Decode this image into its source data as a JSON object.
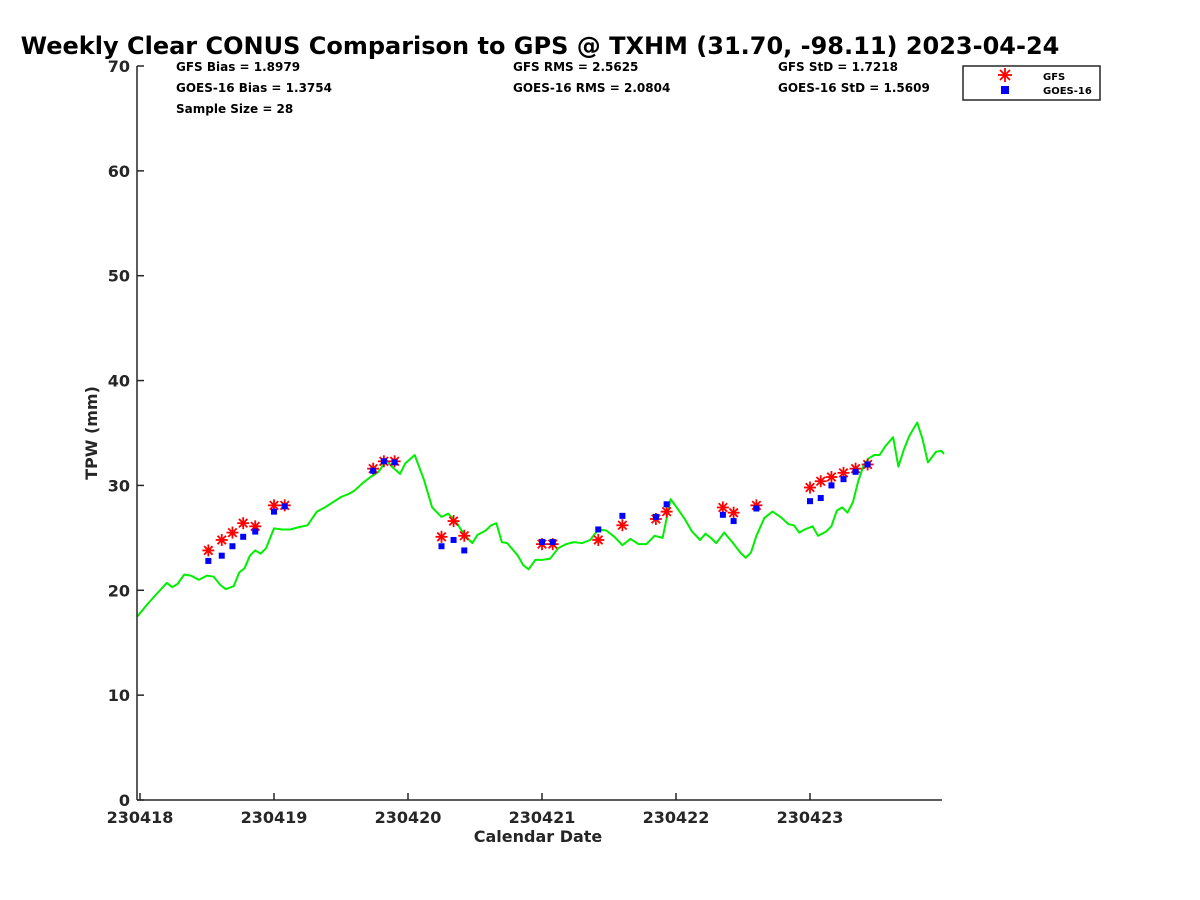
{
  "chart_data": {
    "type": "scatter",
    "title": "Weekly Clear CONUS Comparison to GPS @ TXHM (31.70, -98.11) 2023-04-24",
    "xlabel": "Calendar Date",
    "ylabel": "TPW (mm)",
    "xlim": [
      -0.02,
      6.0
    ],
    "ylim": [
      0,
      70
    ],
    "x_ticks": [
      0,
      1,
      2,
      3,
      4,
      5
    ],
    "x_tick_labels": [
      "230418",
      "230419",
      "230420",
      "230421",
      "230422",
      "230423"
    ],
    "y_ticks": [
      0,
      10,
      20,
      30,
      40,
      50,
      60,
      70
    ],
    "y_tick_labels": [
      "0",
      "10",
      "20",
      "30",
      "40",
      "50",
      "60",
      "70"
    ],
    "grid": false,
    "legend_position": "top-right",
    "stats": [
      {
        "text": "GFS Bias = 1.8979"
      },
      {
        "text": "GOES-16 Bias = 1.3754"
      },
      {
        "text": "Sample Size = 28"
      },
      {
        "text": "GFS RMS = 2.5625"
      },
      {
        "text": "GOES-16 RMS = 2.0804"
      },
      {
        "text": "GFS StD = 1.7218"
      },
      {
        "text": "GOES-16 StD = 1.5609"
      }
    ],
    "series": [
      {
        "name": "GFS",
        "marker": "asterisk",
        "color": "#ff0000",
        "x": [
          0.51,
          0.61,
          0.69,
          0.77,
          0.86,
          1.0,
          1.08,
          1.74,
          1.82,
          1.9,
          2.25,
          2.34,
          2.42,
          3.0,
          3.08,
          3.42,
          3.6,
          3.85,
          3.93,
          4.35,
          4.43,
          4.6,
          5.0,
          5.08,
          5.16,
          5.25,
          5.34,
          5.43
        ],
        "y": [
          23.8,
          24.8,
          25.5,
          26.4,
          26.1,
          28.1,
          28.1,
          31.6,
          32.3,
          32.3,
          25.1,
          26.6,
          25.2,
          24.4,
          24.4,
          24.8,
          26.2,
          26.8,
          27.5,
          27.9,
          27.4,
          28.1,
          29.8,
          30.4,
          30.8,
          31.2,
          31.6,
          32.0
        ]
      },
      {
        "name": "GOES-16",
        "marker": "square",
        "color": "#0000ff",
        "x": [
          0.51,
          0.61,
          0.69,
          0.77,
          0.86,
          1.0,
          1.08,
          1.74,
          1.82,
          1.9,
          2.25,
          2.34,
          2.42,
          3.0,
          3.08,
          3.42,
          3.6,
          3.85,
          3.93,
          4.35,
          4.43,
          4.6,
          5.0,
          5.08,
          5.16,
          5.25,
          5.34,
          5.43
        ],
        "y": [
          22.8,
          23.3,
          24.2,
          25.1,
          25.6,
          27.5,
          28.0,
          31.4,
          32.3,
          32.2,
          24.2,
          24.8,
          23.8,
          24.6,
          24.6,
          25.8,
          27.1,
          27.0,
          28.2,
          27.2,
          26.6,
          27.8,
          28.5,
          28.8,
          30.0,
          30.6,
          31.3,
          32.0
        ]
      },
      {
        "name": "GPS",
        "marker": "line",
        "color": "#00ee00",
        "x": [
          -0.02,
          0.05,
          0.12,
          0.2,
          0.24,
          0.28,
          0.33,
          0.38,
          0.44,
          0.5,
          0.55,
          0.6,
          0.64,
          0.7,
          0.74,
          0.78,
          0.82,
          0.86,
          0.9,
          0.94,
          1.0,
          1.06,
          1.12,
          1.18,
          1.25,
          1.32,
          1.38,
          1.44,
          1.5,
          1.56,
          1.6,
          1.66,
          1.72,
          1.78,
          1.84,
          1.88,
          1.94,
          1.98,
          2.05,
          2.12,
          2.18,
          2.25,
          2.3,
          2.36,
          2.42,
          2.48,
          2.52,
          2.58,
          2.62,
          2.66,
          2.7,
          2.74,
          2.78,
          2.82,
          2.86,
          2.9,
          2.95,
          3.0,
          3.06,
          3.12,
          3.18,
          3.24,
          3.3,
          3.36,
          3.42,
          3.48,
          3.54,
          3.6,
          3.66,
          3.72,
          3.78,
          3.84,
          3.9,
          3.96,
          4.0,
          4.06,
          4.12,
          4.18,
          4.22,
          4.26,
          4.3,
          4.36,
          4.42,
          4.48,
          4.52,
          4.56,
          4.6,
          4.66,
          4.72,
          4.78,
          4.84,
          4.88,
          4.92,
          4.96,
          5.02,
          5.06,
          5.12,
          5.16,
          5.2,
          5.24,
          5.28,
          5.32,
          5.36,
          5.4,
          5.44,
          5.48,
          5.52,
          5.56,
          5.62,
          5.66,
          5.7,
          5.74,
          5.8,
          5.84,
          5.88,
          5.94,
          5.98,
          6.0
        ],
        "y": [
          17.5,
          18.6,
          19.6,
          20.7,
          20.3,
          20.6,
          21.5,
          21.4,
          21.0,
          21.4,
          21.3,
          20.5,
          20.1,
          20.4,
          21.7,
          22.1,
          23.3,
          23.8,
          23.5,
          24.0,
          25.9,
          25.8,
          25.8,
          26.0,
          26.2,
          27.5,
          27.9,
          28.4,
          28.9,
          29.2,
          29.5,
          30.2,
          30.8,
          31.3,
          32.4,
          31.8,
          31.1,
          32.1,
          32.9,
          30.5,
          27.9,
          27.0,
          27.3,
          26.5,
          25.3,
          24.5,
          25.3,
          25.7,
          26.2,
          26.4,
          24.6,
          24.5,
          23.9,
          23.3,
          22.4,
          22.0,
          22.9,
          22.9,
          23.0,
          24.0,
          24.4,
          24.6,
          24.5,
          24.8,
          25.8,
          25.7,
          25.1,
          24.3,
          24.9,
          24.4,
          24.4,
          25.2,
          25.0,
          28.7,
          28.0,
          26.9,
          25.6,
          24.8,
          25.4,
          25.0,
          24.5,
          25.5,
          24.6,
          23.6,
          23.1,
          23.6,
          25.2,
          26.9,
          27.5,
          27.0,
          26.3,
          26.2,
          25.5,
          25.8,
          26.1,
          25.2,
          25.6,
          26.1,
          27.6,
          27.9,
          27.4,
          28.4,
          30.4,
          31.9,
          32.6,
          32.9,
          32.9,
          33.7,
          34.6,
          31.8,
          33.4,
          34.7,
          36.0,
          34.4,
          32.2,
          33.2,
          33.3,
          33.0
        ]
      }
    ]
  }
}
